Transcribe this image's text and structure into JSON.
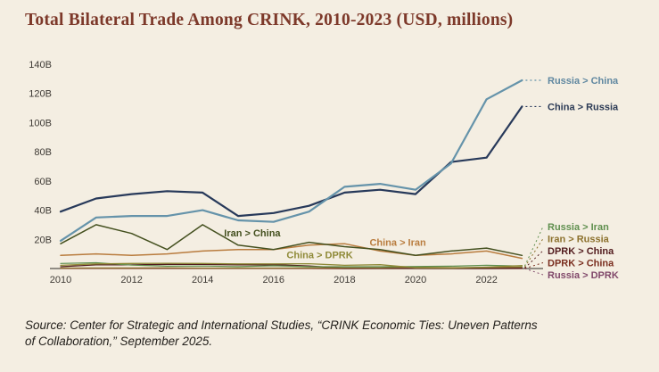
{
  "page": {
    "title": "Total Bilateral Trade Among CRINK, 2010-2023 (USD, millions)",
    "source": "Source: Center for Strategic and International Studies, “CRINK Economic Ties: Uneven Patterns of Collaboration,” September 2025.",
    "background_color": "#f4eee2",
    "title_color": "#7d392a"
  },
  "chart_data": {
    "type": "line",
    "title": "Total Bilateral Trade Among CRINK, 2010-2023 (USD, millions)",
    "xlabel": "",
    "ylabel": "",
    "x": [
      2010,
      2011,
      2012,
      2013,
      2014,
      2015,
      2016,
      2017,
      2018,
      2019,
      2020,
      2021,
      2022,
      2023
    ],
    "x_tick_labels": [
      "2010",
      "2012",
      "2014",
      "2016",
      "2018",
      "2020",
      "2022"
    ],
    "y_ticks": [
      20,
      40,
      60,
      80,
      100,
      120,
      140
    ],
    "y_tick_suffix": "B",
    "ylim": [
      0,
      140
    ],
    "grid": false,
    "units": "USD billions",
    "legend_position": "right-edge-direct-labels",
    "series": [
      {
        "name": "Russia > DPRK",
        "color": "#80486a",
        "width": 1.2,
        "label_placement": "fan",
        "fan_slot": 4,
        "values": [
          0.1,
          0.11,
          0.07,
          0.1,
          0.08,
          0.08,
          0.07,
          0.08,
          0.03,
          0.04,
          0.04,
          0.01,
          0.01,
          0.03
        ]
      },
      {
        "name": "DPRK > China",
        "color": "#7a2e1f",
        "width": 1.2,
        "label_placement": "fan",
        "fan_slot": 3,
        "values": [
          0.07,
          0.1,
          0.08,
          0.1,
          0.08,
          0.06,
          0.07,
          0.08,
          0.02,
          0.03,
          0.02,
          0.01,
          0.02,
          0.05
        ]
      },
      {
        "name": "DPRK > China",
        "color": "#521c1e",
        "width": 1.3,
        "label_placement": "fan",
        "fan_slot": 2,
        "label_bold": true,
        "values": [
          1.2,
          2.5,
          2.5,
          2.9,
          2.8,
          2.5,
          2.6,
          1.7,
          0.2,
          0.2,
          0.05,
          0.06,
          0.13,
          0.3
        ]
      },
      {
        "name": "Iran > Russia",
        "color": "#8c712d",
        "width": 1.2,
        "label_placement": "fan",
        "fan_slot": 1,
        "values": [
          0.3,
          0.35,
          0.4,
          0.5,
          0.3,
          0.3,
          0.3,
          0.4,
          0.5,
          0.5,
          0.9,
          0.6,
          0.7,
          1.0
        ]
      },
      {
        "name": "Russia > Iran",
        "color": "#5f8f4e",
        "width": 1.2,
        "label_placement": "fan",
        "fan_slot": 0,
        "values": [
          3.5,
          4.0,
          2.3,
          1.6,
          1.7,
          1.3,
          1.9,
          1.3,
          1.2,
          1.2,
          1.4,
          1.6,
          2.2,
          1.7
        ]
      },
      {
        "name": "China > DPRK",
        "color": "#8f8a38",
        "width": 1.3,
        "label_placement": "inline",
        "values": [
          2.2,
          3.2,
          3.5,
          3.6,
          3.5,
          3.2,
          3.2,
          3.3,
          2.2,
          2.6,
          0.5,
          0.3,
          0.9,
          2.0
        ]
      },
      {
        "name": "China > Iran",
        "color": "#b97c3e",
        "width": 1.5,
        "label_placement": "inline",
        "values": [
          9,
          10,
          9,
          10,
          12,
          13,
          13,
          16,
          17,
          12,
          9,
          10,
          12,
          7
        ]
      },
      {
        "name": "Iran > China",
        "color": "#44501f",
        "width": 1.5,
        "label_placement": "inline",
        "values": [
          17,
          30,
          24,
          13,
          30,
          16,
          13,
          18,
          15,
          13,
          9,
          12,
          14,
          9
        ]
      },
      {
        "name": "China > Russia",
        "color": "#27395a",
        "width": 2.2,
        "label_placement": "end",
        "label_color": "#2b3a55",
        "values": [
          39,
          48,
          51,
          53,
          52,
          36,
          38,
          43,
          52,
          54,
          51,
          73,
          76,
          111
        ]
      },
      {
        "name": "Russia > China",
        "color": "#6593aa",
        "width": 2.2,
        "label_placement": "end",
        "label_color": "#5f87a0",
        "values": [
          19,
          35,
          36,
          36,
          40,
          33,
          32,
          39,
          56,
          58,
          54,
          72,
          116,
          129
        ]
      }
    ],
    "annotations": [
      {
        "text": "Iran > China",
        "x": 2015.4,
        "y": 22,
        "color": "#44501f"
      },
      {
        "text": "China > Iran",
        "x": 2019.5,
        "y": 15.5,
        "color": "#b97c3e"
      },
      {
        "text": "China > DPRK",
        "x": 2017.3,
        "y": 7,
        "color": "#8f8a38"
      }
    ]
  }
}
